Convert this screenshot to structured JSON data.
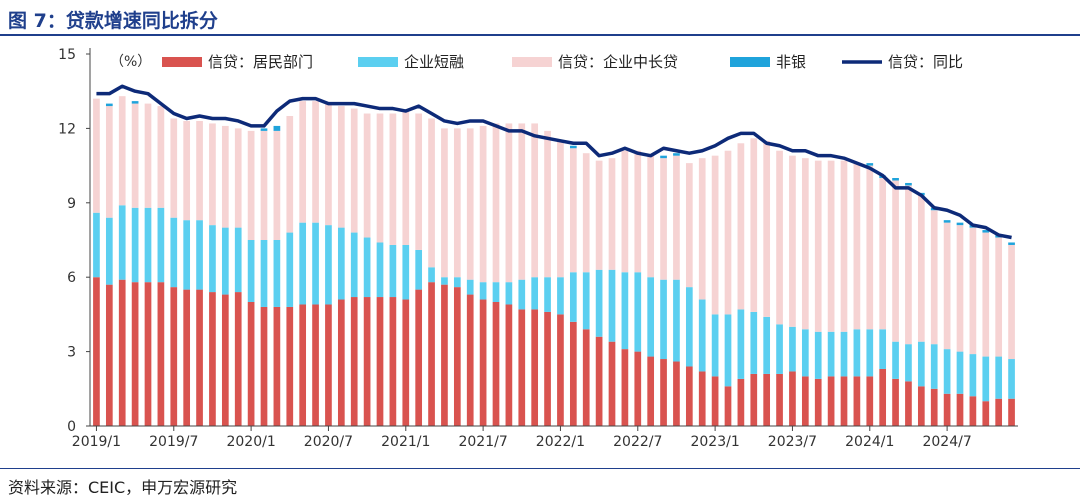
{
  "figure": {
    "title": "图 7：贷款增速同比拆分",
    "source": "资料来源：CEIC，申万宏源研究"
  },
  "colors": {
    "household": "#d9534f",
    "short": "#5bcff0",
    "long": "#f6d3d3",
    "nonbank": "#1fa3db",
    "total": "#0d2a78",
    "heading": "#1f3f8c"
  },
  "chart_data": {
    "type": "bar",
    "stacked": true,
    "unit_label": "（%）",
    "ylim": [
      0,
      15
    ],
    "yticks": [
      0,
      3,
      6,
      9,
      12,
      15
    ],
    "xtick_labels": [
      "2019/1",
      "2019/7",
      "2020/1",
      "2020/7",
      "2021/1",
      "2021/7",
      "2022/1",
      "2022/7",
      "2023/1",
      "2023/7",
      "2024/1",
      "2024/7"
    ],
    "xtick_indices": [
      0,
      6,
      12,
      18,
      24,
      30,
      36,
      42,
      48,
      54,
      60,
      66
    ],
    "legend_position": "top",
    "categories": [
      "2019/1",
      "2019/2",
      "2019/3",
      "2019/4",
      "2019/5",
      "2019/6",
      "2019/7",
      "2019/8",
      "2019/9",
      "2019/10",
      "2019/11",
      "2019/12",
      "2020/1",
      "2020/2",
      "2020/3",
      "2020/4",
      "2020/5",
      "2020/6",
      "2020/7",
      "2020/8",
      "2020/9",
      "2020/10",
      "2020/11",
      "2020/12",
      "2021/1",
      "2021/2",
      "2021/3",
      "2021/4",
      "2021/5",
      "2021/6",
      "2021/7",
      "2021/8",
      "2021/9",
      "2021/10",
      "2021/11",
      "2021/12",
      "2022/1",
      "2022/2",
      "2022/3",
      "2022/4",
      "2022/5",
      "2022/6",
      "2022/7",
      "2022/8",
      "2022/9",
      "2022/10",
      "2022/11",
      "2022/12",
      "2023/1",
      "2023/2",
      "2023/3",
      "2023/4",
      "2023/5",
      "2023/6",
      "2023/7",
      "2023/8",
      "2023/9",
      "2023/10",
      "2023/11",
      "2023/12",
      "2024/1",
      "2024/2",
      "2024/3",
      "2024/4",
      "2024/5",
      "2024/6",
      "2024/7",
      "2024/8",
      "2024/9",
      "2024/10",
      "2024/11",
      "2024/12"
    ],
    "series": [
      {
        "name": "信贷：居民部门",
        "kind": "bar",
        "values": [
          6.0,
          5.7,
          5.9,
          5.8,
          5.8,
          5.8,
          5.6,
          5.5,
          5.5,
          5.4,
          5.3,
          5.4,
          5.0,
          4.8,
          4.8,
          4.8,
          4.9,
          4.9,
          4.9,
          5.1,
          5.2,
          5.2,
          5.2,
          5.2,
          5.1,
          5.5,
          5.8,
          5.7,
          5.6,
          5.3,
          5.1,
          5.0,
          4.9,
          4.7,
          4.7,
          4.6,
          4.5,
          4.2,
          3.9,
          3.6,
          3.4,
          3.1,
          3.0,
          2.8,
          2.7,
          2.6,
          2.4,
          2.2,
          2.0,
          1.6,
          1.9,
          2.1,
          2.1,
          2.1,
          2.2,
          2.0,
          1.9,
          2.0,
          2.0,
          2.0,
          2.0,
          2.3,
          1.9,
          1.8,
          1.6,
          1.5,
          1.3,
          1.3,
          1.2,
          1.0,
          1.1,
          1.1
        ]
      },
      {
        "name": "企业短融",
        "kind": "bar",
        "values": [
          2.6,
          2.7,
          3.0,
          3.0,
          3.0,
          3.0,
          2.8,
          2.8,
          2.8,
          2.7,
          2.7,
          2.6,
          2.5,
          2.7,
          2.7,
          3.0,
          3.3,
          3.3,
          3.2,
          2.9,
          2.6,
          2.4,
          2.2,
          2.1,
          2.2,
          1.6,
          0.6,
          0.3,
          0.4,
          0.6,
          0.7,
          0.8,
          0.9,
          1.2,
          1.3,
          1.4,
          1.5,
          2.0,
          2.3,
          2.7,
          2.9,
          3.1,
          3.2,
          3.2,
          3.2,
          3.3,
          3.2,
          2.9,
          2.5,
          2.9,
          2.8,
          2.5,
          2.3,
          2.0,
          1.8,
          1.9,
          1.9,
          1.8,
          1.8,
          1.9,
          1.9,
          1.6,
          1.5,
          1.5,
          1.8,
          1.8,
          1.8,
          1.7,
          1.7,
          1.8,
          1.7,
          1.6
        ]
      },
      {
        "name": "信贷：企业中长贷",
        "kind": "bar",
        "values": [
          4.6,
          4.5,
          4.4,
          4.2,
          4.2,
          4.1,
          4.0,
          4.0,
          4.0,
          4.1,
          4.1,
          4.0,
          4.4,
          4.4,
          4.4,
          4.7,
          4.9,
          4.9,
          4.9,
          4.9,
          5.0,
          5.0,
          5.2,
          5.3,
          5.4,
          5.5,
          6.0,
          6.0,
          6.0,
          6.1,
          6.3,
          6.4,
          6.4,
          6.3,
          6.2,
          5.9,
          5.5,
          5.0,
          4.8,
          4.4,
          4.5,
          4.9,
          4.9,
          4.9,
          4.9,
          5.0,
          5.0,
          5.7,
          6.4,
          6.6,
          6.7,
          7.0,
          7.1,
          7.0,
          6.9,
          6.9,
          6.9,
          6.9,
          6.9,
          6.7,
          6.6,
          6.1,
          6.5,
          6.4,
          5.9,
          5.4,
          5.1,
          5.1,
          5.1,
          5.0,
          4.8,
          4.6
        ]
      },
      {
        "name": "非银",
        "kind": "bar",
        "values": [
          0,
          0.1,
          0,
          0.1,
          0,
          0,
          0,
          0,
          0,
          0,
          0,
          0,
          0,
          0.1,
          0.2,
          0,
          0,
          0,
          0,
          0,
          0,
          0,
          0,
          0,
          0,
          0,
          0,
          0,
          0,
          0,
          0,
          0,
          0,
          0,
          0,
          0,
          0,
          0.1,
          0,
          0,
          0,
          0,
          0,
          0,
          0.1,
          0.1,
          0,
          0,
          0,
          0,
          0,
          0,
          0,
          0,
          0,
          0,
          0,
          0,
          0,
          0,
          0.1,
          0.1,
          0.1,
          0.1,
          0.1,
          0.1,
          0.1,
          0.1,
          0.1,
          0.1,
          0.1,
          0.1
        ]
      },
      {
        "name": "信贷：同比",
        "kind": "line",
        "values": [
          13.4,
          13.4,
          13.7,
          13.5,
          13.4,
          13.0,
          12.6,
          12.4,
          12.5,
          12.4,
          12.4,
          12.3,
          12.1,
          12.1,
          12.7,
          13.1,
          13.2,
          13.2,
          13.0,
          13.0,
          13.0,
          12.9,
          12.8,
          12.8,
          12.7,
          12.9,
          12.6,
          12.3,
          12.2,
          12.3,
          12.3,
          12.1,
          11.9,
          11.9,
          11.7,
          11.6,
          11.5,
          11.4,
          11.4,
          10.9,
          11.0,
          11.2,
          11.0,
          10.9,
          11.2,
          11.1,
          11.0,
          11.1,
          11.3,
          11.6,
          11.8,
          11.8,
          11.4,
          11.3,
          11.1,
          11.1,
          10.9,
          10.9,
          10.8,
          10.6,
          10.4,
          10.1,
          9.6,
          9.6,
          9.3,
          8.8,
          8.7,
          8.5,
          8.1,
          8.0,
          7.7,
          7.6
        ]
      }
    ]
  }
}
